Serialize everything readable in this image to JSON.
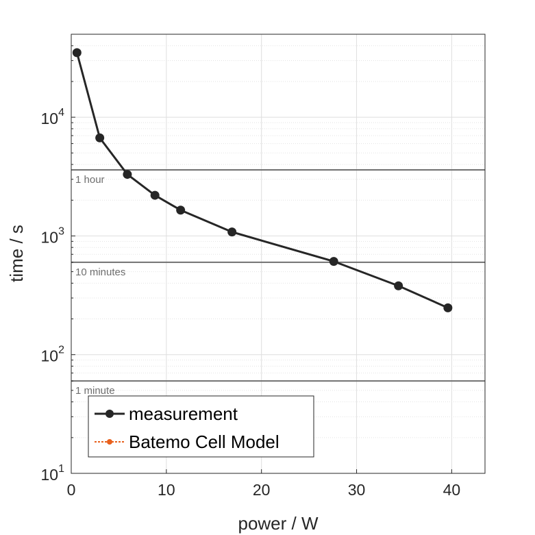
{
  "chart_data": {
    "type": "line",
    "xlabel": "power / W",
    "ylabel": "time / s",
    "xlim": [
      0,
      43.5
    ],
    "ylim": [
      10,
      50000
    ],
    "yscale": "log",
    "grid": true,
    "x_ticks": [
      0,
      10,
      20,
      30,
      40
    ],
    "x_tick_labels": [
      "0",
      "10",
      "20",
      "30",
      "40"
    ],
    "y_ticks": [
      {
        "value": 10,
        "base": "10",
        "exp": "1"
      },
      {
        "value": 100,
        "base": "10",
        "exp": "2"
      },
      {
        "value": 1000,
        "base": "10",
        "exp": "3"
      },
      {
        "value": 10000,
        "base": "10",
        "exp": "4"
      }
    ],
    "reference_lines": [
      {
        "value": 3600,
        "label": "1 hour"
      },
      {
        "value": 600,
        "label": "10 minutes"
      },
      {
        "value": 60,
        "label": "1 minute"
      }
    ],
    "series": [
      {
        "name": "measurement",
        "color": "#262626",
        "x": [
          0.6,
          3.0,
          5.9,
          8.8,
          11.5,
          16.9,
          27.6,
          34.4,
          39.6
        ],
        "y": [
          35000,
          6700,
          3300,
          2200,
          1650,
          1080,
          610,
          380,
          248
        ]
      },
      {
        "name": "Batemo Cell Model",
        "color": "#e8601c",
        "x": [],
        "y": []
      }
    ],
    "legend_position": "bottom-left"
  }
}
